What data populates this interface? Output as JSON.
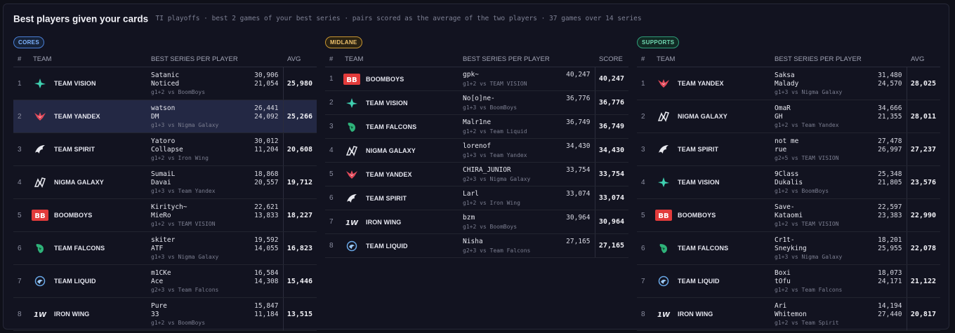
{
  "header": {
    "title": "Best players given your cards",
    "subtitle": "TI playoffs · best 2 games of your best series · pairs scored as the average of the two players · 37 games over 14 series"
  },
  "columns": {
    "rank": "#",
    "team": "TEAM",
    "series": "BEST SERIES PER PLAYER",
    "avg": "AVG",
    "score": "SCORE"
  },
  "colors": {
    "accent_blue": "#7fb4ff",
    "accent_gold": "#f0c36e",
    "accent_green": "#71d9b2",
    "highlight_row": "#232844"
  },
  "cores": {
    "badge": "CORES",
    "rows": [
      {
        "rank": "1",
        "team": "TEAM VISION",
        "logo": "team-vision-logo",
        "p1": "Satanic",
        "v1": "30,906",
        "p2": "Noticed",
        "v2": "21,054",
        "sub": "g1+2 vs BoomBoys",
        "avg": "25,980"
      },
      {
        "rank": "2",
        "team": "TEAM YANDEX",
        "logo": "team-yandex-logo",
        "p1": "watson",
        "v1": "26,441",
        "p2": "DM",
        "v2": "24,092",
        "sub": "g1+3 vs Nigma Galaxy",
        "avg": "25,266"
      },
      {
        "rank": "3",
        "team": "TEAM SPIRIT",
        "logo": "team-spirit-logo",
        "p1": "Yatoro",
        "v1": "30,012",
        "p2": "Collapse",
        "v2": "11,204",
        "sub": "g1+2 vs Iron Wing",
        "avg": "20,608"
      },
      {
        "rank": "4",
        "team": "NIGMA GALAXY",
        "logo": "nigma-galaxy-logo",
        "p1": "SumaiL",
        "v1": "18,868",
        "p2": "Davai",
        "v2": "20,557",
        "sub": "g1+3 vs Team Yandex",
        "avg": "19,712"
      },
      {
        "rank": "5",
        "team": "BOOMBOYS",
        "logo": "boomboys-logo",
        "p1": "Kiritych~",
        "v1": "22,621",
        "p2": "MieRo",
        "v2": "13,833",
        "sub": "g1+2 vs TEAM VISION",
        "avg": "18,227"
      },
      {
        "rank": "6",
        "team": "TEAM FALCONS",
        "logo": "team-falcons-logo",
        "p1": "skiter",
        "v1": "19,592",
        "p2": "ATF",
        "v2": "14,055",
        "sub": "g1+3 vs Nigma Galaxy",
        "avg": "16,823"
      },
      {
        "rank": "7",
        "team": "TEAM LIQUID",
        "logo": "team-liquid-logo",
        "p1": "m1CKe",
        "v1": "16,584",
        "p2": "Ace",
        "v2": "14,308",
        "sub": "g2+3 vs Team Falcons",
        "avg": "15,446"
      },
      {
        "rank": "8",
        "team": "IRON WING",
        "logo": "iron-wing-logo",
        "p1": "Pure",
        "v1": "15,847",
        "p2": "33",
        "v2": "11,184",
        "sub": "g1+2 vs BoomBoys",
        "avg": "13,515"
      }
    ]
  },
  "midlane": {
    "badge": "MIDLANE",
    "rows": [
      {
        "rank": "1",
        "team": "BOOMBOYS",
        "logo": "boomboys-logo",
        "p1": "gpk~",
        "v1": "40,247",
        "sub": "g1+2 vs TEAM VISION",
        "avg": "40,247"
      },
      {
        "rank": "2",
        "team": "TEAM VISION",
        "logo": "team-vision-logo",
        "p1": "No[o]ne-",
        "v1": "36,776",
        "sub": "g1+3 vs BoomBoys",
        "avg": "36,776"
      },
      {
        "rank": "3",
        "team": "TEAM FALCONS",
        "logo": "team-falcons-logo",
        "p1": "Malr1ne",
        "v1": "36,749",
        "sub": "g1+2 vs Team Liquid",
        "avg": "36,749"
      },
      {
        "rank": "4",
        "team": "NIGMA GALAXY",
        "logo": "nigma-galaxy-logo",
        "p1": "lorenof",
        "v1": "34,430",
        "sub": "g1+3 vs Team Yandex",
        "avg": "34,430"
      },
      {
        "rank": "5",
        "team": "TEAM YANDEX",
        "logo": "team-yandex-logo",
        "p1": "CHIRA_JUNIOR",
        "v1": "33,754",
        "sub": "g2+3 vs Nigma Galaxy",
        "avg": "33,754"
      },
      {
        "rank": "6",
        "team": "TEAM SPIRIT",
        "logo": "team-spirit-logo",
        "p1": "Larl",
        "v1": "33,074",
        "sub": "g1+2 vs Iron Wing",
        "avg": "33,074"
      },
      {
        "rank": "7",
        "team": "IRON WING",
        "logo": "iron-wing-logo",
        "p1": "bzm",
        "v1": "30,964",
        "sub": "g1+2 vs BoomBoys",
        "avg": "30,964"
      },
      {
        "rank": "8",
        "team": "TEAM LIQUID",
        "logo": "team-liquid-logo",
        "p1": "Nisha",
        "v1": "27,165",
        "sub": "g2+3 vs Team Falcons",
        "avg": "27,165"
      }
    ]
  },
  "supports": {
    "badge": "SUPPORTS",
    "rows": [
      {
        "rank": "1",
        "team": "TEAM YANDEX",
        "logo": "team-yandex-logo",
        "p1": "Saksa",
        "v1": "31,480",
        "p2": "Malady",
        "v2": "24,570",
        "sub": "g1+3 vs Nigma Galaxy",
        "avg": "28,025"
      },
      {
        "rank": "2",
        "team": "NIGMA GALAXY",
        "logo": "nigma-galaxy-logo",
        "p1": "OmaR",
        "v1": "34,666",
        "p2": "GH",
        "v2": "21,355",
        "sub": "g1+2 vs Team Yandex",
        "avg": "28,011"
      },
      {
        "rank": "3",
        "team": "TEAM SPIRIT",
        "logo": "team-spirit-logo",
        "p1": "not me",
        "v1": "27,478",
        "p2": "rue",
        "v2": "26,997",
        "sub": "g2+5 vs TEAM VISION",
        "avg": "27,237"
      },
      {
        "rank": "4",
        "team": "TEAM VISION",
        "logo": "team-vision-logo",
        "p1": "9Class",
        "v1": "25,348",
        "p2": "Dukalis",
        "v2": "21,805",
        "sub": "g1+2 vs BoomBoys",
        "avg": "23,576"
      },
      {
        "rank": "5",
        "team": "BOOMBOYS",
        "logo": "boomboys-logo",
        "p1": "Save-",
        "v1": "22,597",
        "p2": "Kataomi",
        "v2": "23,383",
        "sub": "g1+2 vs TEAM VISION",
        "avg": "22,990"
      },
      {
        "rank": "6",
        "team": "TEAM FALCONS",
        "logo": "team-falcons-logo",
        "p1": "Cr1t-",
        "v1": "18,201",
        "p2": "Sneyking",
        "v2": "25,955",
        "sub": "g1+3 vs Nigma Galaxy",
        "avg": "22,078"
      },
      {
        "rank": "7",
        "team": "TEAM LIQUID",
        "logo": "team-liquid-logo",
        "p1": "Boxi",
        "v1": "18,073",
        "p2": "tOfu",
        "v2": "24,171",
        "sub": "g1+2 vs Team Falcons",
        "avg": "21,122"
      },
      {
        "rank": "8",
        "team": "IRON WING",
        "logo": "iron-wing-logo",
        "p1": "Ari",
        "v1": "14,194",
        "p2": "Whitemon",
        "v2": "27,440",
        "sub": "g1+2 vs Team Spirit",
        "avg": "20,817"
      }
    ]
  }
}
